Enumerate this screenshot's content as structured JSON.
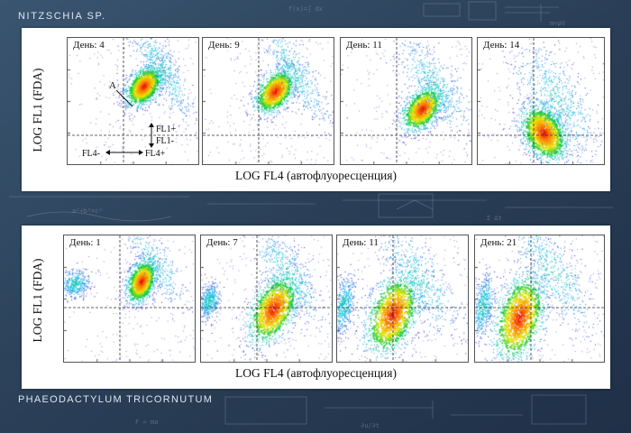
{
  "species_top": "NITZSCHIA SP.",
  "species_bottom": "PHAEODACTYLUM TRICORNUTUM",
  "ylabel": "LOG FL1 (FDA)",
  "xlabel": "LOG FL4 (автофлуоресценция)",
  "annotations": {
    "cluster": "A",
    "fl1_plus": "FL1+",
    "fl1_minus": "FL1-",
    "fl4_minus": "FL4-",
    "fl4_plus": "FL4+"
  },
  "chart_data": [
    {
      "type": "scatter",
      "group": "NITZSCHIA SP.",
      "xlabel": "LOG FL4 (автофлуоресценция)",
      "ylabel": "LOG FL1 (FDA)",
      "scale": "log-log",
      "panels": [
        {
          "label": "День: 4",
          "clusters": [
            {
              "x": 0.58,
              "y": 0.62,
              "sx": 0.055,
              "sy": 0.09,
              "rot": -0.9,
              "n": 1400
            },
            {
              "x": 0.72,
              "y": 0.75,
              "sx": 0.22,
              "sy": 0.06,
              "rot": -0.55,
              "n": 500
            }
          ]
        },
        {
          "label": "День: 9",
          "clusters": [
            {
              "x": 0.55,
              "y": 0.58,
              "sx": 0.06,
              "sy": 0.1,
              "rot": -0.9,
              "n": 1200
            },
            {
              "x": 0.7,
              "y": 0.74,
              "sx": 0.22,
              "sy": 0.06,
              "rot": -0.55,
              "n": 450
            }
          ]
        },
        {
          "label": "День: 11",
          "clusters": [
            {
              "x": 0.62,
              "y": 0.44,
              "sx": 0.06,
              "sy": 0.1,
              "rot": -0.9,
              "n": 1200
            },
            {
              "x": 0.72,
              "y": 0.62,
              "sx": 0.22,
              "sy": 0.08,
              "rot": -0.6,
              "n": 500
            }
          ]
        },
        {
          "label": "День: 14",
          "clusters": [
            {
              "x": 0.52,
              "y": 0.25,
              "sx": 0.12,
              "sy": 0.08,
              "rot": -0.5,
              "n": 1600
            },
            {
              "x": 0.62,
              "y": 0.52,
              "sx": 0.26,
              "sy": 0.1,
              "rot": -0.6,
              "n": 600
            }
          ]
        }
      ]
    },
    {
      "type": "scatter",
      "group": "PHAEODACTYLUM TRICORNUTUM",
      "xlabel": "LOG FL4 (автофлуоресценция)",
      "ylabel": "LOG FL1 (FDA)",
      "scale": "log-log",
      "panels": [
        {
          "label": "День: 1",
          "clusters": [
            {
              "x": 0.59,
              "y": 0.64,
              "sx": 0.05,
              "sy": 0.09,
              "rot": -1.2,
              "n": 1300
            },
            {
              "x": 0.08,
              "y": 0.62,
              "sx": 0.05,
              "sy": 0.06,
              "rot": -0.6,
              "n": 400
            },
            {
              "x": 0.7,
              "y": 0.78,
              "sx": 0.18,
              "sy": 0.06,
              "rot": -0.6,
              "n": 300
            }
          ]
        },
        {
          "label": "День: 7",
          "clusters": [
            {
              "x": 0.55,
              "y": 0.42,
              "sx": 0.08,
              "sy": 0.15,
              "rot": -1.1,
              "n": 1400
            },
            {
              "x": 0.06,
              "y": 0.48,
              "sx": 0.04,
              "sy": 0.07,
              "rot": -1.3,
              "n": 450
            },
            {
              "x": 0.66,
              "y": 0.7,
              "sx": 0.22,
              "sy": 0.08,
              "rot": -0.6,
              "n": 450
            }
          ]
        },
        {
          "label": "День: 11",
          "clusters": [
            {
              "x": 0.42,
              "y": 0.38,
              "sx": 0.09,
              "sy": 0.17,
              "rot": -1.2,
              "n": 1500
            },
            {
              "x": 0.05,
              "y": 0.45,
              "sx": 0.035,
              "sy": 0.12,
              "rot": -1.4,
              "n": 500
            },
            {
              "x": 0.62,
              "y": 0.66,
              "sx": 0.24,
              "sy": 0.09,
              "rot": -0.6,
              "n": 500
            }
          ]
        },
        {
          "label": "День: 21",
          "clusters": [
            {
              "x": 0.34,
              "y": 0.35,
              "sx": 0.09,
              "sy": 0.18,
              "rot": -1.3,
              "n": 1500
            },
            {
              "x": 0.06,
              "y": 0.44,
              "sx": 0.04,
              "sy": 0.12,
              "rot": -1.4,
              "n": 500
            },
            {
              "x": 0.6,
              "y": 0.7,
              "sx": 0.26,
              "sy": 0.09,
              "rot": -0.6,
              "n": 500
            }
          ]
        }
      ]
    }
  ]
}
